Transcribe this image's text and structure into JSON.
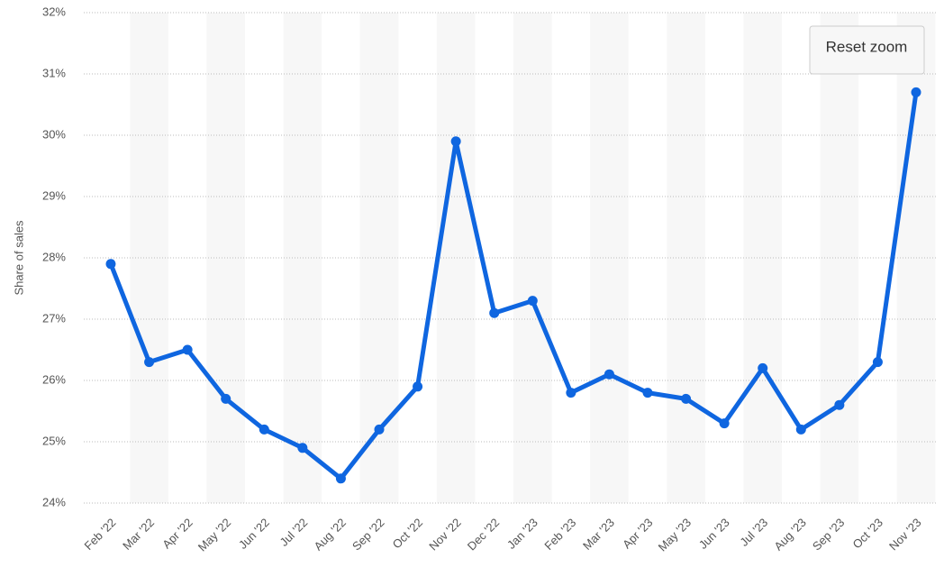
{
  "chart_data": {
    "type": "line",
    "y_label": "Share of sales",
    "button": "Reset zoom",
    "categories": [
      "Feb '22",
      "Mar '22",
      "Apr '22",
      "May '22",
      "Jun '22",
      "Jul '22",
      "Aug '22",
      "Sep '22",
      "Oct '22",
      "Nov '22",
      "Dec '22",
      "Jan '23",
      "Feb '23",
      "Mar '23",
      "Apr '23",
      "May '23",
      "Jun '23",
      "Jul '23",
      "Aug '23",
      "Sep '23",
      "Oct '23",
      "Nov '23"
    ],
    "values": [
      27.9,
      26.3,
      26.5,
      25.7,
      25.2,
      24.9,
      24.4,
      25.2,
      25.9,
      29.9,
      27.1,
      27.3,
      25.8,
      26.1,
      25.8,
      25.7,
      25.3,
      26.2,
      25.2,
      25.6,
      26.3,
      30.7
    ],
    "color": "#0f66e0",
    "ylim": [
      24,
      32
    ],
    "yticks": [
      {
        "value": 24,
        "label": "24%"
      },
      {
        "value": 25,
        "label": "25%"
      },
      {
        "value": 26,
        "label": "26%"
      },
      {
        "value": 27,
        "label": "27%"
      },
      {
        "value": 28,
        "label": "28%"
      },
      {
        "value": 29,
        "label": "29%"
      },
      {
        "value": 30,
        "label": "30%"
      },
      {
        "value": 31,
        "label": "31%"
      },
      {
        "value": 32,
        "label": "32%"
      }
    ],
    "grid": true
  }
}
